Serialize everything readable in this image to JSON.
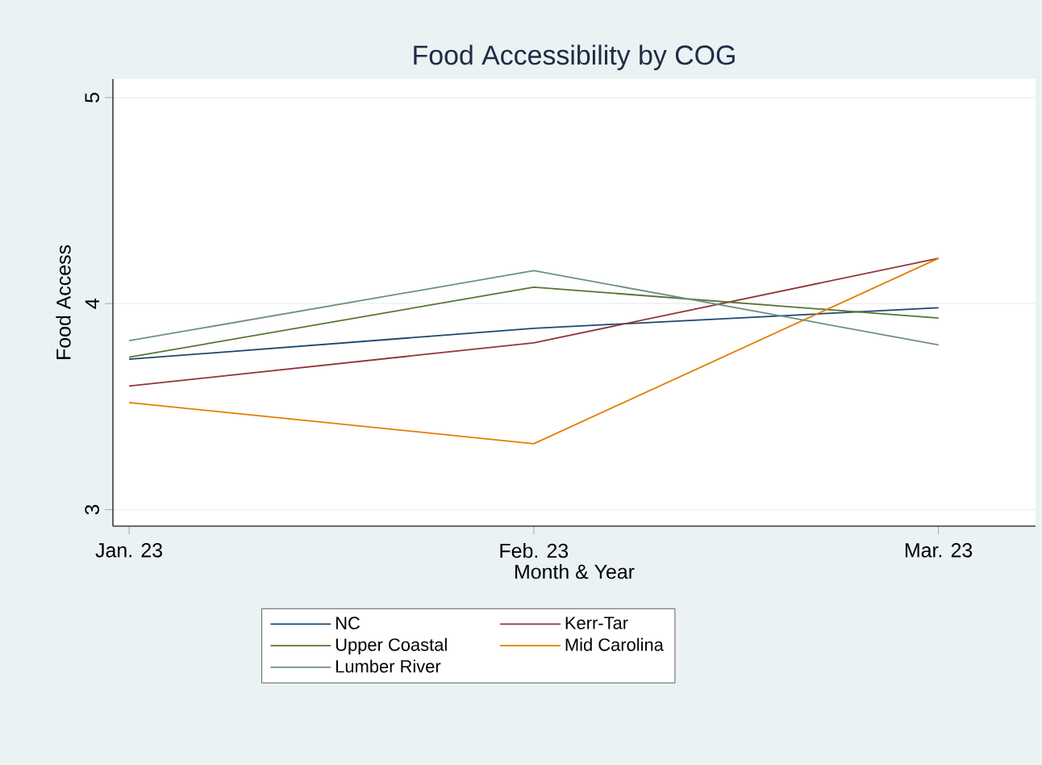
{
  "chart_data": {
    "type": "line",
    "title": "Food Accessibility by COG",
    "xlabel": "Month & Year",
    "ylabel": "Food Access",
    "categories": [
      "Jan. 23",
      "Feb. 23",
      "Mar. 23"
    ],
    "series": [
      {
        "name": "NC",
        "color": "#1a476f",
        "values": [
          3.73,
          3.88,
          3.98
        ]
      },
      {
        "name": "Kerr-Tar",
        "color": "#90353b",
        "values": [
          3.6,
          3.81,
          4.22
        ]
      },
      {
        "name": "Upper Coastal",
        "color": "#55752f",
        "values": [
          3.74,
          4.08,
          3.93
        ]
      },
      {
        "name": "Mid Carolina",
        "color": "#e37e00",
        "values": [
          3.52,
          3.32,
          4.22
        ]
      },
      {
        "name": "Lumber River",
        "color": "#6e8e84",
        "values": [
          3.82,
          4.16,
          3.8
        ]
      }
    ],
    "ylim": [
      2.92,
      5.09
    ],
    "yticks": [
      3,
      4,
      5
    ],
    "grid": "y",
    "legend": "bottom",
    "marker": "none",
    "line_style": "solid"
  }
}
